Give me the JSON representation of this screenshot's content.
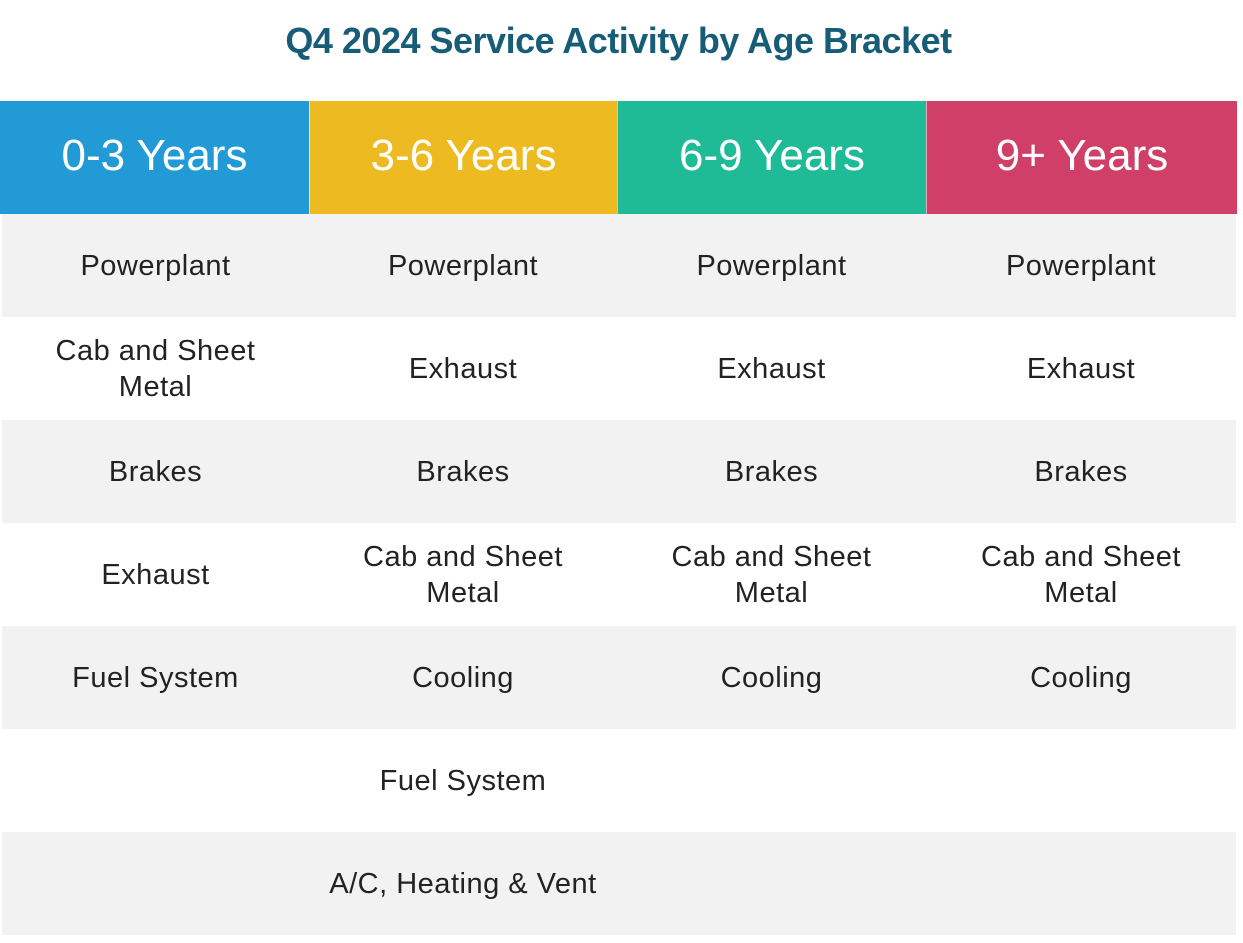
{
  "chart_data": {
    "type": "table",
    "title": "Q4 2024 Service Activity by Age Bracket",
    "columns": [
      {
        "label": "0-3 Years",
        "color": "#229ad6",
        "items": [
          "Powerplant",
          "Cab and Sheet Metal",
          "Brakes",
          "Exhaust",
          "Fuel System",
          "",
          ""
        ]
      },
      {
        "label": "3-6 Years",
        "color": "#edbb21",
        "items": [
          "Powerplant",
          "Exhaust",
          "Brakes",
          "Cab and Sheet Metal",
          "Cooling",
          "Fuel System",
          "A/C, Heating & Vent"
        ]
      },
      {
        "label": "6-9 Years",
        "color": "#1fbb97",
        "items": [
          "Powerplant",
          "Exhaust",
          "Brakes",
          "Cab and Sheet Metal",
          "Cooling",
          "",
          ""
        ]
      },
      {
        "label": "9+ Years",
        "color": "#d03f68",
        "items": [
          "Powerplant",
          "Exhaust",
          "Brakes",
          "Cab and Sheet Metal",
          "Cooling",
          "",
          ""
        ]
      }
    ]
  }
}
